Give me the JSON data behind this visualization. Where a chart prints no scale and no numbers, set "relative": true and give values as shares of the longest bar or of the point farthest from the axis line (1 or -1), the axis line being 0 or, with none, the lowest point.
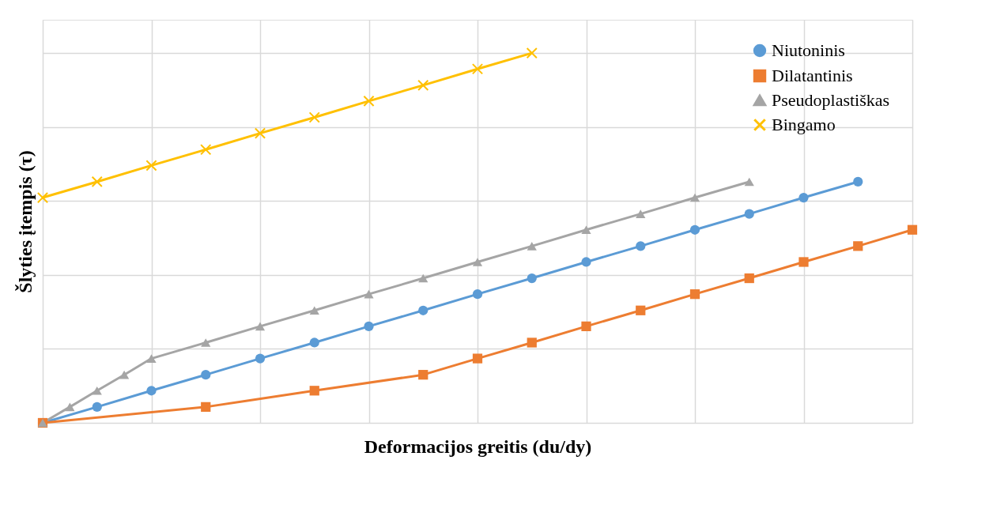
{
  "chart_data": {
    "type": "line",
    "relative": true,
    "xlabel": "Deformacijos greitis (du/dy)",
    "ylabel": "Šlyties įtempis (τ)",
    "categories": [
      null,
      null,
      null,
      null,
      null,
      null,
      null,
      null,
      null,
      null,
      null,
      null,
      null,
      null,
      null,
      null,
      null,
      null,
      null,
      null,
      null,
      null,
      null,
      null,
      null,
      null,
      null,
      null,
      null,
      null,
      null,
      null,
      null
    ],
    "grid": true,
    "legend": "top right",
    "line_style": "solid",
    "series": [
      {
        "name": "Niutoninis",
        "color": "#5b9bd5",
        "marker": "circle",
        "values": [
          0,
          null,
          0.043,
          null,
          0.087,
          null,
          0.13,
          null,
          0.174,
          null,
          0.217,
          null,
          0.261,
          null,
          0.304,
          null,
          0.348,
          null,
          0.391,
          null,
          0.435,
          null,
          0.478,
          null,
          0.522,
          null,
          0.565,
          null,
          0.609,
          null,
          0.652,
          null,
          null
        ]
      },
      {
        "name": "Dilatantinis",
        "color": "#ed7d31",
        "marker": "square",
        "values": [
          0,
          null,
          null,
          null,
          null,
          null,
          0.043,
          null,
          null,
          null,
          0.087,
          null,
          null,
          null,
          0.13,
          null,
          0.174,
          null,
          0.217,
          null,
          0.261,
          null,
          0.304,
          null,
          0.348,
          null,
          0.391,
          null,
          0.435,
          null,
          0.478,
          null,
          0.522
        ]
      },
      {
        "name": "Pseudoplastiškas",
        "color": "#a5a5a5",
        "marker": "triangle",
        "values": [
          0,
          0.043,
          0.087,
          0.13,
          0.174,
          null,
          0.217,
          null,
          0.261,
          null,
          0.304,
          null,
          0.348,
          null,
          0.391,
          null,
          0.435,
          null,
          0.478,
          null,
          0.522,
          null,
          0.565,
          null,
          0.609,
          null,
          0.652,
          null,
          null,
          null,
          null,
          null,
          null
        ]
      },
      {
        "name": "Bingamo",
        "color": "#ffc000",
        "marker": "cross",
        "values": [
          0.609,
          null,
          0.652,
          null,
          0.696,
          null,
          0.739,
          null,
          0.783,
          null,
          0.826,
          null,
          0.87,
          null,
          0.913,
          null,
          0.957,
          null,
          1.0,
          null,
          null,
          null,
          null,
          null,
          null,
          null,
          null,
          null,
          null,
          null,
          null,
          null,
          null
        ]
      }
    ]
  }
}
